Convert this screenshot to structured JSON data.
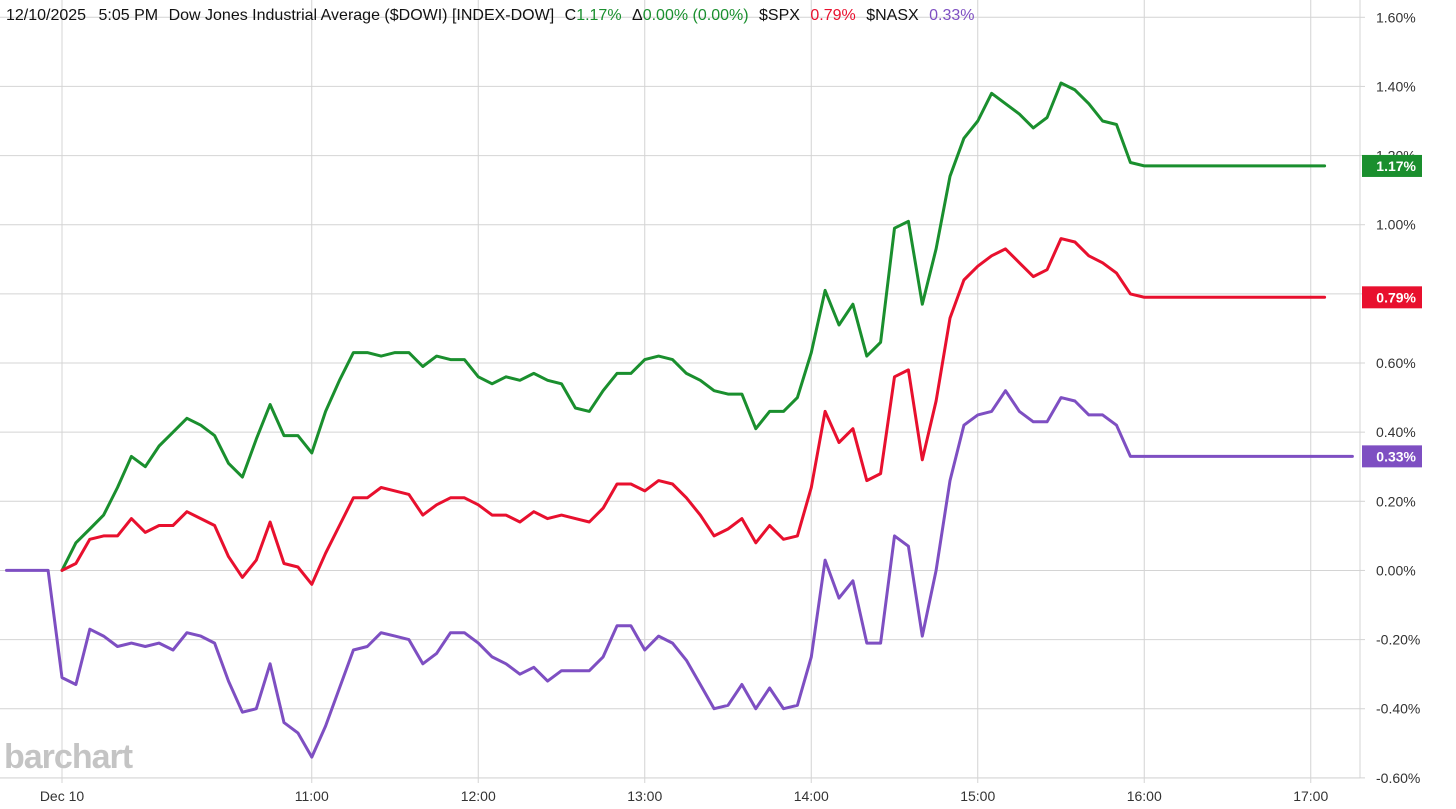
{
  "header": {
    "date": "12/10/2025",
    "time": "5:05 PM",
    "name": "Dow Jones Industrial Average ($DOWI) [INDEX-DOW]",
    "close_prefix": "C",
    "close_value": "1.17%",
    "change_prefix": "Δ",
    "change_value": "0.00% (0.00%)",
    "spx_symbol": "$SPX",
    "spx_value": "0.79%",
    "nasx_symbol": "$NASX",
    "nasx_value": "0.33%"
  },
  "colors": {
    "dowi": "#1a8f2e",
    "spx": "#e8102e",
    "nasx": "#7e4fc2",
    "text": "#111111",
    "grid": "#d4d4d4",
    "logo": "#c4c4c4"
  },
  "logo": "barchart",
  "chart_data": {
    "type": "line",
    "x_unit": "time of day",
    "xlim": [
      "09:30",
      "17:15"
    ],
    "ylim": [
      -0.0069,
      0.0165
    ],
    "grid": true,
    "y_ticks": [
      {
        "value": 0.016,
        "label": "1.60%"
      },
      {
        "value": 0.014,
        "label": "1.40%"
      },
      {
        "value": 0.012,
        "label": "1.20%"
      },
      {
        "value": 0.01,
        "label": "1.00%"
      },
      {
        "value": 0.008,
        "label": "0.80%"
      },
      {
        "value": 0.006,
        "label": "0.60%"
      },
      {
        "value": 0.004,
        "label": "0.40%"
      },
      {
        "value": 0.002,
        "label": "0.20%"
      },
      {
        "value": 0.0,
        "label": "0.00%"
      },
      {
        "value": -0.002,
        "label": "-0.20%"
      },
      {
        "value": -0.004,
        "label": "-0.40%"
      },
      {
        "value": -0.006,
        "label": "-0.60%"
      }
    ],
    "x_ticks": [
      {
        "time": "09:30",
        "label": "Dec 10"
      },
      {
        "time": "11:00",
        "label": "11:00"
      },
      {
        "time": "12:00",
        "label": "12:00"
      },
      {
        "time": "13:00",
        "label": "13:00"
      },
      {
        "time": "14:00",
        "label": "14:00"
      },
      {
        "time": "15:00",
        "label": "15:00"
      },
      {
        "time": "16:00",
        "label": "16:00"
      },
      {
        "time": "17:00",
        "label": "17:00"
      }
    ],
    "series": [
      {
        "key": "dowi",
        "last_label": "1.17%",
        "points": [
          [
            "09:30",
            0.0
          ],
          [
            "09:35",
            0.0008
          ],
          [
            "09:40",
            0.0012
          ],
          [
            "09:45",
            0.0016
          ],
          [
            "09:50",
            0.0024
          ],
          [
            "09:55",
            0.0033
          ],
          [
            "10:00",
            0.003
          ],
          [
            "10:05",
            0.0036
          ],
          [
            "10:10",
            0.004
          ],
          [
            "10:15",
            0.0044
          ],
          [
            "10:20",
            0.0042
          ],
          [
            "10:25",
            0.0039
          ],
          [
            "10:30",
            0.0031
          ],
          [
            "10:35",
            0.0027
          ],
          [
            "10:40",
            0.0038
          ],
          [
            "10:45",
            0.0048
          ],
          [
            "10:50",
            0.0039
          ],
          [
            "10:55",
            0.0039
          ],
          [
            "11:00",
            0.0034
          ],
          [
            "11:05",
            0.0046
          ],
          [
            "11:10",
            0.0055
          ],
          [
            "11:15",
            0.0063
          ],
          [
            "11:20",
            0.0063
          ],
          [
            "11:25",
            0.0062
          ],
          [
            "11:30",
            0.0063
          ],
          [
            "11:35",
            0.0063
          ],
          [
            "11:40",
            0.0059
          ],
          [
            "11:45",
            0.0062
          ],
          [
            "11:50",
            0.0061
          ],
          [
            "11:55",
            0.0061
          ],
          [
            "12:00",
            0.0056
          ],
          [
            "12:05",
            0.0054
          ],
          [
            "12:10",
            0.0056
          ],
          [
            "12:15",
            0.0055
          ],
          [
            "12:20",
            0.0057
          ],
          [
            "12:25",
            0.0055
          ],
          [
            "12:30",
            0.0054
          ],
          [
            "12:35",
            0.0047
          ],
          [
            "12:40",
            0.0046
          ],
          [
            "12:45",
            0.0052
          ],
          [
            "12:50",
            0.0057
          ],
          [
            "12:55",
            0.0057
          ],
          [
            "13:00",
            0.0061
          ],
          [
            "13:05",
            0.0062
          ],
          [
            "13:10",
            0.0061
          ],
          [
            "13:15",
            0.0057
          ],
          [
            "13:20",
            0.0055
          ],
          [
            "13:25",
            0.0052
          ],
          [
            "13:30",
            0.0051
          ],
          [
            "13:35",
            0.0051
          ],
          [
            "13:40",
            0.0041
          ],
          [
            "13:45",
            0.0046
          ],
          [
            "13:50",
            0.0046
          ],
          [
            "13:55",
            0.005
          ],
          [
            "14:00",
            0.0063
          ],
          [
            "14:05",
            0.0081
          ],
          [
            "14:10",
            0.0071
          ],
          [
            "14:15",
            0.0077
          ],
          [
            "14:20",
            0.0062
          ],
          [
            "14:25",
            0.0066
          ],
          [
            "14:30",
            0.0099
          ],
          [
            "14:35",
            0.0101
          ],
          [
            "14:40",
            0.0077
          ],
          [
            "14:45",
            0.0093
          ],
          [
            "14:50",
            0.0114
          ],
          [
            "14:55",
            0.0125
          ],
          [
            "15:00",
            0.013
          ],
          [
            "15:05",
            0.0138
          ],
          [
            "15:10",
            0.0135
          ],
          [
            "15:15",
            0.0132
          ],
          [
            "15:20",
            0.0128
          ],
          [
            "15:25",
            0.0131
          ],
          [
            "15:30",
            0.0141
          ],
          [
            "15:35",
            0.0139
          ],
          [
            "15:40",
            0.0135
          ],
          [
            "15:45",
            0.013
          ],
          [
            "15:50",
            0.0129
          ],
          [
            "15:55",
            0.0118
          ],
          [
            "16:00",
            0.0117
          ],
          [
            "17:05",
            0.0117
          ]
        ]
      },
      {
        "key": "spx",
        "last_label": "0.79%",
        "points": [
          [
            "09:30",
            0.0
          ],
          [
            "09:35",
            0.0002
          ],
          [
            "09:40",
            0.0009
          ],
          [
            "09:45",
            0.001
          ],
          [
            "09:50",
            0.001
          ],
          [
            "09:55",
            0.0015
          ],
          [
            "10:00",
            0.0011
          ],
          [
            "10:05",
            0.0013
          ],
          [
            "10:10",
            0.0013
          ],
          [
            "10:15",
            0.0017
          ],
          [
            "10:20",
            0.0015
          ],
          [
            "10:25",
            0.0013
          ],
          [
            "10:30",
            0.0004
          ],
          [
            "10:35",
            -0.0002
          ],
          [
            "10:40",
            0.0003
          ],
          [
            "10:45",
            0.0014
          ],
          [
            "10:50",
            0.0002
          ],
          [
            "10:55",
            0.0001
          ],
          [
            "11:00",
            -0.0004
          ],
          [
            "11:05",
            0.0005
          ],
          [
            "11:10",
            0.0013
          ],
          [
            "11:15",
            0.0021
          ],
          [
            "11:20",
            0.0021
          ],
          [
            "11:25",
            0.0024
          ],
          [
            "11:30",
            0.0023
          ],
          [
            "11:35",
            0.0022
          ],
          [
            "11:40",
            0.0016
          ],
          [
            "11:45",
            0.0019
          ],
          [
            "11:50",
            0.0021
          ],
          [
            "11:55",
            0.0021
          ],
          [
            "12:00",
            0.0019
          ],
          [
            "12:05",
            0.0016
          ],
          [
            "12:10",
            0.0016
          ],
          [
            "12:15",
            0.0014
          ],
          [
            "12:20",
            0.0017
          ],
          [
            "12:25",
            0.0015
          ],
          [
            "12:30",
            0.0016
          ],
          [
            "12:35",
            0.0015
          ],
          [
            "12:40",
            0.0014
          ],
          [
            "12:45",
            0.0018
          ],
          [
            "12:50",
            0.0025
          ],
          [
            "12:55",
            0.0025
          ],
          [
            "13:00",
            0.0023
          ],
          [
            "13:05",
            0.0026
          ],
          [
            "13:10",
            0.0025
          ],
          [
            "13:15",
            0.0021
          ],
          [
            "13:20",
            0.0016
          ],
          [
            "13:25",
            0.001
          ],
          [
            "13:30",
            0.0012
          ],
          [
            "13:35",
            0.0015
          ],
          [
            "13:40",
            0.0008
          ],
          [
            "13:45",
            0.0013
          ],
          [
            "13:50",
            0.0009
          ],
          [
            "13:55",
            0.001
          ],
          [
            "14:00",
            0.0024
          ],
          [
            "14:05",
            0.0046
          ],
          [
            "14:10",
            0.0037
          ],
          [
            "14:15",
            0.0041
          ],
          [
            "14:20",
            0.0026
          ],
          [
            "14:25",
            0.0028
          ],
          [
            "14:30",
            0.0056
          ],
          [
            "14:35",
            0.0058
          ],
          [
            "14:40",
            0.0032
          ],
          [
            "14:45",
            0.0049
          ],
          [
            "14:50",
            0.0073
          ],
          [
            "14:55",
            0.0084
          ],
          [
            "15:00",
            0.0088
          ],
          [
            "15:05",
            0.0091
          ],
          [
            "15:10",
            0.0093
          ],
          [
            "15:15",
            0.0089
          ],
          [
            "15:20",
            0.0085
          ],
          [
            "15:25",
            0.0087
          ],
          [
            "15:30",
            0.0096
          ],
          [
            "15:35",
            0.0095
          ],
          [
            "15:40",
            0.0091
          ],
          [
            "15:45",
            0.0089
          ],
          [
            "15:50",
            0.0086
          ],
          [
            "15:55",
            0.008
          ],
          [
            "16:00",
            0.0079
          ],
          [
            "17:05",
            0.0079
          ]
        ]
      },
      {
        "key": "nasx",
        "last_label": "0.33%",
        "points": [
          [
            "09:10",
            0.0
          ],
          [
            "09:25",
            0.0
          ],
          [
            "09:30",
            -0.0031
          ],
          [
            "09:35",
            -0.0033
          ],
          [
            "09:40",
            -0.0017
          ],
          [
            "09:45",
            -0.0019
          ],
          [
            "09:50",
            -0.0022
          ],
          [
            "09:55",
            -0.0021
          ],
          [
            "10:00",
            -0.0022
          ],
          [
            "10:05",
            -0.0021
          ],
          [
            "10:10",
            -0.0023
          ],
          [
            "10:15",
            -0.0018
          ],
          [
            "10:20",
            -0.0019
          ],
          [
            "10:25",
            -0.0021
          ],
          [
            "10:30",
            -0.0032
          ],
          [
            "10:35",
            -0.0041
          ],
          [
            "10:40",
            -0.004
          ],
          [
            "10:45",
            -0.0027
          ],
          [
            "10:50",
            -0.0044
          ],
          [
            "10:55",
            -0.0047
          ],
          [
            "11:00",
            -0.0054
          ],
          [
            "11:05",
            -0.0045
          ],
          [
            "11:10",
            -0.0034
          ],
          [
            "11:15",
            -0.0023
          ],
          [
            "11:20",
            -0.0022
          ],
          [
            "11:25",
            -0.0018
          ],
          [
            "11:30",
            -0.0019
          ],
          [
            "11:35",
            -0.002
          ],
          [
            "11:40",
            -0.0027
          ],
          [
            "11:45",
            -0.0024
          ],
          [
            "11:50",
            -0.0018
          ],
          [
            "11:55",
            -0.0018
          ],
          [
            "12:00",
            -0.0021
          ],
          [
            "12:05",
            -0.0025
          ],
          [
            "12:10",
            -0.0027
          ],
          [
            "12:15",
            -0.003
          ],
          [
            "12:20",
            -0.0028
          ],
          [
            "12:25",
            -0.0032
          ],
          [
            "12:30",
            -0.0029
          ],
          [
            "12:35",
            -0.0029
          ],
          [
            "12:40",
            -0.0029
          ],
          [
            "12:45",
            -0.0025
          ],
          [
            "12:50",
            -0.0016
          ],
          [
            "12:55",
            -0.0016
          ],
          [
            "13:00",
            -0.0023
          ],
          [
            "13:05",
            -0.0019
          ],
          [
            "13:10",
            -0.0021
          ],
          [
            "13:15",
            -0.0026
          ],
          [
            "13:20",
            -0.0033
          ],
          [
            "13:25",
            -0.004
          ],
          [
            "13:30",
            -0.0039
          ],
          [
            "13:35",
            -0.0033
          ],
          [
            "13:40",
            -0.004
          ],
          [
            "13:45",
            -0.0034
          ],
          [
            "13:50",
            -0.004
          ],
          [
            "13:55",
            -0.0039
          ],
          [
            "14:00",
            -0.0025
          ],
          [
            "14:05",
            0.0003
          ],
          [
            "14:10",
            -0.0008
          ],
          [
            "14:15",
            -0.0003
          ],
          [
            "14:20",
            -0.0021
          ],
          [
            "14:25",
            -0.0021
          ],
          [
            "14:30",
            0.001
          ],
          [
            "14:35",
            0.0007
          ],
          [
            "14:40",
            -0.0019
          ],
          [
            "14:45",
            0.0
          ],
          [
            "14:50",
            0.0026
          ],
          [
            "14:55",
            0.0042
          ],
          [
            "15:00",
            0.0045
          ],
          [
            "15:05",
            0.0046
          ],
          [
            "15:10",
            0.0052
          ],
          [
            "15:15",
            0.0046
          ],
          [
            "15:20",
            0.0043
          ],
          [
            "15:25",
            0.0043
          ],
          [
            "15:30",
            0.005
          ],
          [
            "15:35",
            0.0049
          ],
          [
            "15:40",
            0.0045
          ],
          [
            "15:45",
            0.0045
          ],
          [
            "15:50",
            0.0042
          ],
          [
            "15:55",
            0.0033
          ],
          [
            "16:00",
            0.0033
          ],
          [
            "17:15",
            0.0033
          ]
        ]
      }
    ]
  }
}
